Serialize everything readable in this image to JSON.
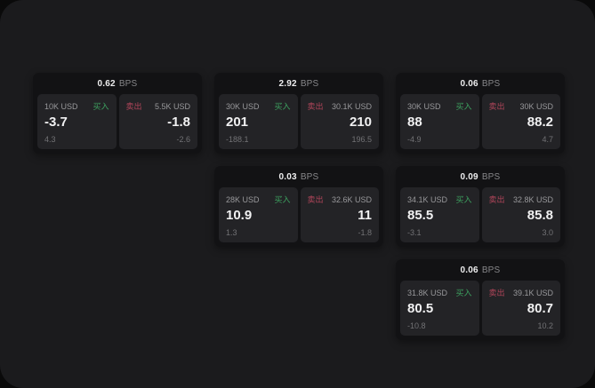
{
  "window": {
    "bps_unit": "BPS",
    "buy_label": "买入",
    "sell_label": "卖出"
  },
  "colors": {
    "buy_accent": "#3da05f",
    "sell_accent": "#b0455a",
    "window_bg": "#1b1b1d",
    "card_bg": "#121214",
    "panel_bg": "#232326"
  },
  "cards": [
    {
      "col": 1,
      "row": 1,
      "bps": "0.62",
      "buy": {
        "amount": "10K USD",
        "price": "-3.7",
        "sub": "4.3"
      },
      "sell": {
        "amount": "5.5K USD",
        "price": "-1.8",
        "sub": "-2.6"
      }
    },
    {
      "col": 2,
      "row": 1,
      "bps": "2.92",
      "buy": {
        "amount": "30K USD",
        "price": "201",
        "sub": "-188.1"
      },
      "sell": {
        "amount": "30.1K USD",
        "price": "210",
        "sub": "196.5"
      }
    },
    {
      "col": 3,
      "row": 1,
      "bps": "0.06",
      "buy": {
        "amount": "30K USD",
        "price": "88",
        "sub": "-4.9"
      },
      "sell": {
        "amount": "30K USD",
        "price": "88.2",
        "sub": "4.7"
      }
    },
    {
      "col": 2,
      "row": 2,
      "bps": "0.03",
      "buy": {
        "amount": "28K USD",
        "price": "10.9",
        "sub": "1.3"
      },
      "sell": {
        "amount": "32.6K USD",
        "price": "11",
        "sub": "-1.8"
      }
    },
    {
      "col": 3,
      "row": 2,
      "bps": "0.09",
      "buy": {
        "amount": "34.1K USD",
        "price": "85.5",
        "sub": "-3.1"
      },
      "sell": {
        "amount": "32.8K USD",
        "price": "85.8",
        "sub": "3.0"
      }
    },
    {
      "col": 3,
      "row": 3,
      "bps": "0.06",
      "buy": {
        "amount": "31.8K USD",
        "price": "80.5",
        "sub": "-10.8"
      },
      "sell": {
        "amount": "39.1K USD",
        "price": "80.7",
        "sub": "10.2"
      }
    }
  ]
}
